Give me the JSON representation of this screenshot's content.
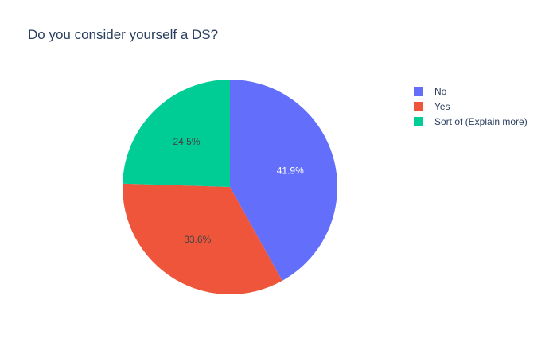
{
  "chart_data": {
    "type": "pie",
    "title": "Do you consider yourself a DS?",
    "labels": [
      "No",
      "Yes",
      "Sort of (Explain more)"
    ],
    "values": [
      41.9,
      33.6,
      24.5
    ],
    "percent_labels": [
      "41.9%",
      "33.6%",
      "24.5%"
    ],
    "colors": [
      "#636efa",
      "#ef553b",
      "#00cc96"
    ],
    "label_colors": [
      "#ffffff",
      "#444444",
      "#444444"
    ],
    "legend_position": "top-right"
  }
}
